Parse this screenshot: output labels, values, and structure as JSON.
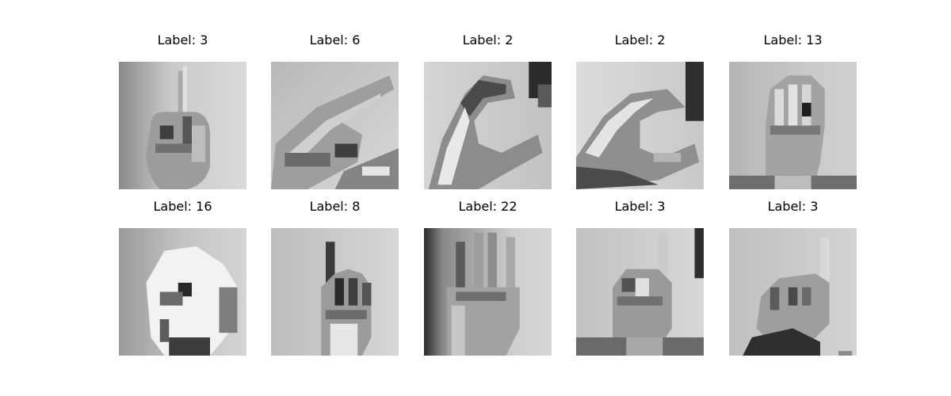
{
  "figure": {
    "panels": [
      {
        "label": "Label: 3",
        "subject": "hand-sign-index-finger-up"
      },
      {
        "label": "Label: 6",
        "subject": "hand-sign-pointing-sideways"
      },
      {
        "label": "Label: 2",
        "subject": "hand-sign-c-shape"
      },
      {
        "label": "Label: 2",
        "subject": "hand-sign-c-shape-dark-background"
      },
      {
        "label": "Label: 13",
        "subject": "hand-sign-closed-fist"
      },
      {
        "label": "Label: 16",
        "subject": "hand-sign-bright-fist"
      },
      {
        "label": "Label: 8",
        "subject": "hand-sign-index-and-fingers"
      },
      {
        "label": "Label: 22",
        "subject": "hand-sign-four-fingers-up"
      },
      {
        "label": "Label: 3",
        "subject": "hand-sign-index-finger-up"
      },
      {
        "label": "Label: 3",
        "subject": "hand-sign-index-finger-up-dark-sleeve"
      }
    ]
  }
}
